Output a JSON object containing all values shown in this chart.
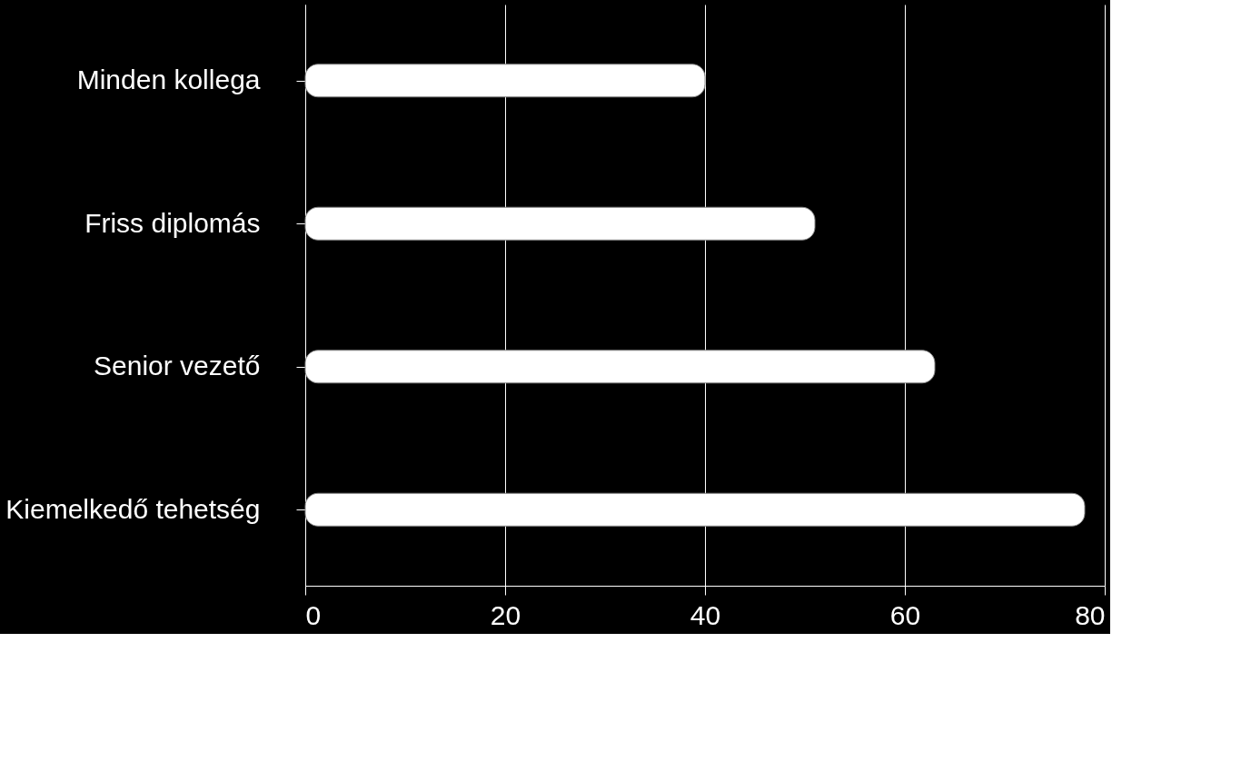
{
  "chart_data": {
    "type": "bar",
    "orientation": "horizontal",
    "categories": [
      "Minden kollega",
      "Friss diplomás",
      "Senior vezető",
      "Kiemelkedő tehetség"
    ],
    "values": [
      40,
      51,
      63,
      78
    ],
    "color": "#ffffff",
    "xlim": [
      0,
      80
    ],
    "xticks": [
      0,
      20,
      40,
      60,
      80
    ],
    "grid": "x"
  }
}
